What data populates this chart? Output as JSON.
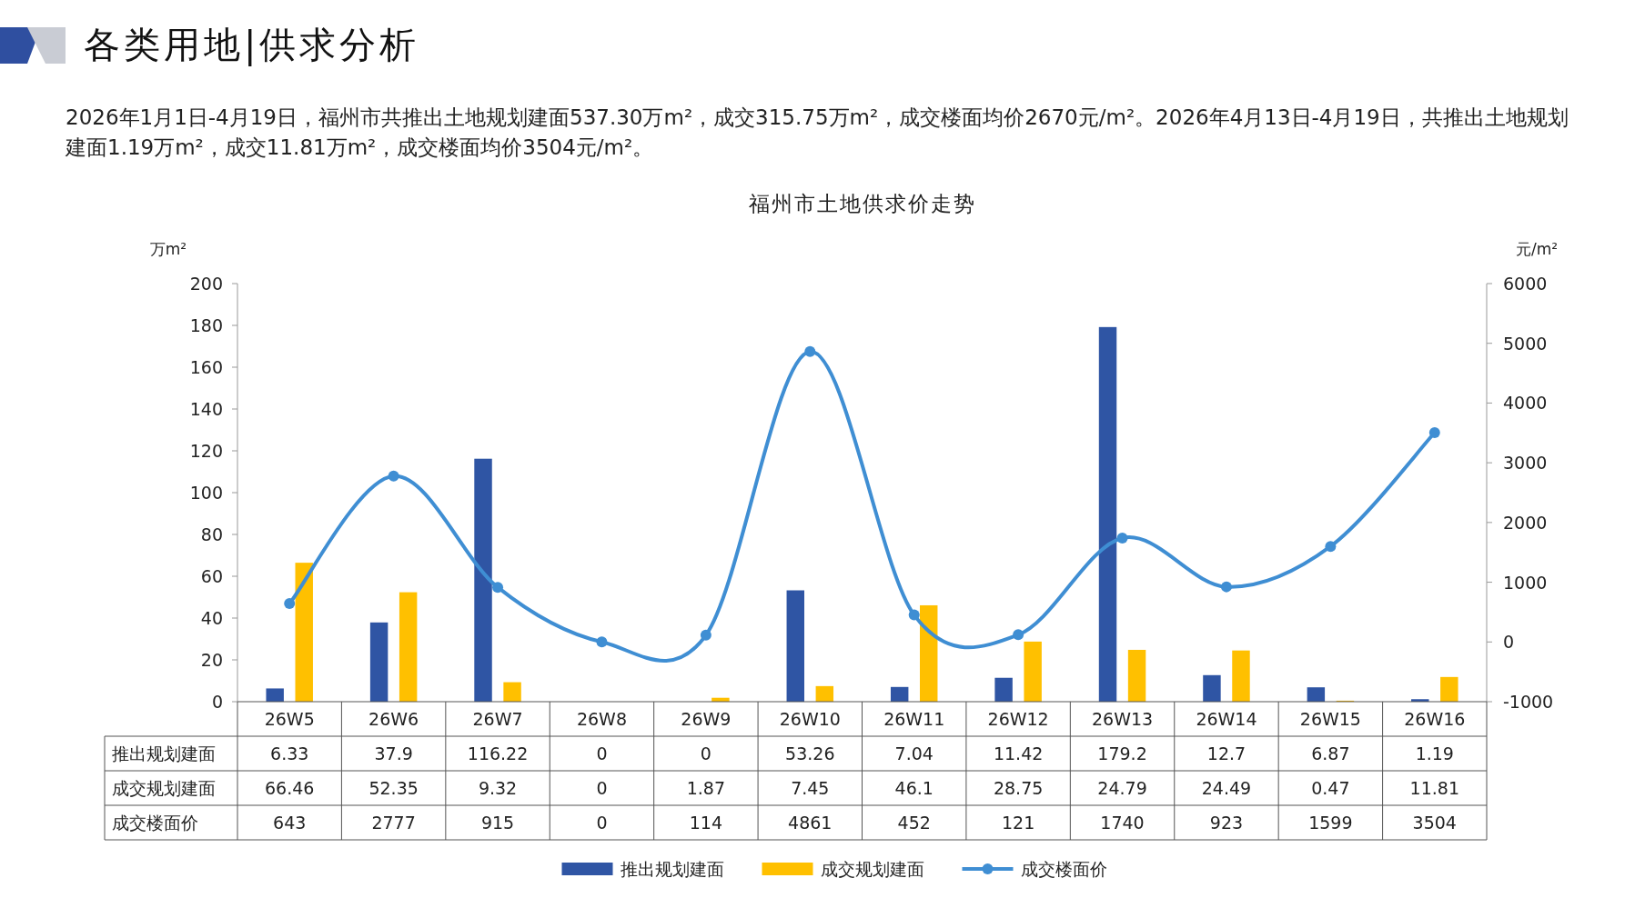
{
  "chart_data": {
    "type": "bar",
    "title": "福州市土地供求价走势",
    "annotations": [
      "各类用地|供求分析",
      "2026年1月1日-4月19日，福州市共推出土地规划建面537.30万m²，成交315.75万m²，成交楼面均价2670元/m²。2026年4月13日-4月19日，共推出土地规划建面1.19万m²，成交11.81万m²，成交楼面均价3504元/m²。"
    ],
    "ylabel": "万m²",
    "y2label": "元/m²",
    "categories": [
      "26W5",
      "26W6",
      "26W7",
      "26W8",
      "26W9",
      "26W10",
      "26W11",
      "26W12",
      "26W13",
      "26W14",
      "26W15",
      "26W16"
    ],
    "series": [
      {
        "name": "推出规划建面",
        "color": "#2f55a4",
        "values": [
          6.33,
          37.9,
          116.22,
          0,
          0,
          53.26,
          7.04,
          11.42,
          179.2,
          12.7,
          6.87,
          1.19
        ]
      },
      {
        "name": "成交规划建面",
        "color": "#ffc000",
        "values": [
          66.46,
          52.35,
          9.32,
          0,
          1.87,
          7.45,
          46.1,
          28.75,
          24.79,
          24.49,
          0.47,
          11.81
        ]
      },
      {
        "name": "成交楼面价",
        "type": "line",
        "axis": "y2",
        "color": "#3f8ed3",
        "marker": "circle",
        "values": [
          643,
          2777,
          915,
          0,
          114,
          4861,
          452,
          121,
          1740,
          923,
          1599,
          3504
        ]
      }
    ],
    "ylim": [
      0,
      200
    ],
    "yticks": [
      0,
      20,
      40,
      60,
      80,
      100,
      120,
      140,
      160,
      180,
      200
    ],
    "y2lim": [
      -1000,
      6000
    ],
    "y2ticks": [
      -1000,
      0,
      1000,
      2000,
      3000,
      4000,
      5000,
      6000
    ],
    "data_labels": true,
    "legend": "bottom",
    "grid": false
  }
}
